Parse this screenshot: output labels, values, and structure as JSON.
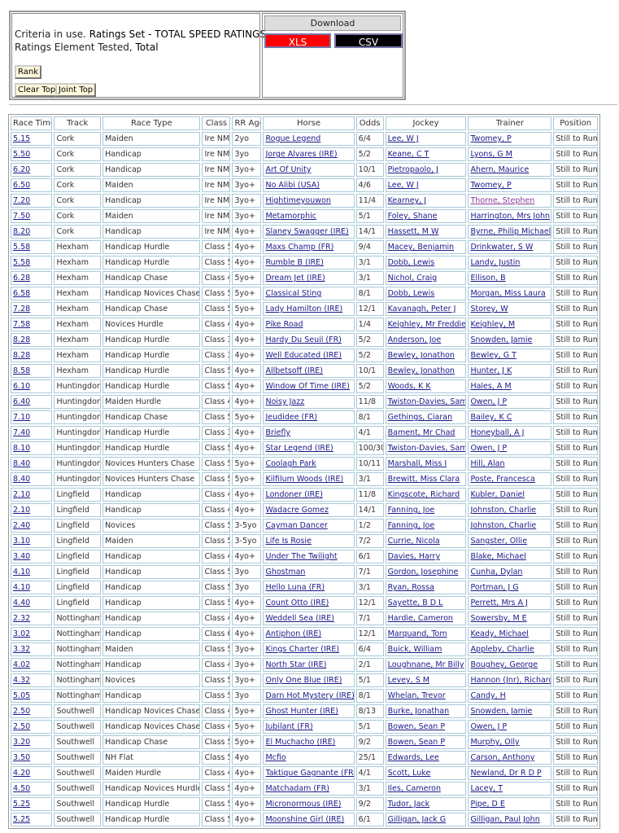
{
  "criteria": {
    "prefix": "Criteria in use. ",
    "set_label": "Ratings Set - TOTAL SPEED RATINGS",
    "element_prefix": "Ratings Element Tested, ",
    "element_value": "Total"
  },
  "buttons": {
    "rank": "Rank",
    "clear_top": "Clear Top",
    "joint_top": "Joint Top"
  },
  "download": {
    "title": "Download",
    "xls": "XLS",
    "csv": "CSV",
    "colors": {
      "xls": "#ff0000",
      "csv": "#000000"
    }
  },
  "columns": [
    "Race Time",
    "Track",
    "Race Type",
    "Class",
    "RR Age",
    "Horse",
    "Odds",
    "Jockey",
    "Trainer",
    "Position"
  ],
  "rows": [
    [
      "5.15",
      "Cork",
      "Maiden",
      "Ire NM",
      "2yo",
      "Rogue Legend",
      "6/4",
      "Lee, W J",
      "Twomey, P",
      "Still to Run"
    ],
    [
      "5.50",
      "Cork",
      "Handicap",
      "Ire NM",
      "3yo",
      "Jorge Alvares (IRE)",
      "5/2",
      "Keane, C T",
      "Lyons, G M",
      "Still to Run"
    ],
    [
      "6.20",
      "Cork",
      "Handicap",
      "Ire NM",
      "3yo+",
      "Art Of Unity",
      "10/1",
      "Pietropaolo, J",
      "Ahern, Maurice",
      "Still to Run"
    ],
    [
      "6.50",
      "Cork",
      "Maiden",
      "Ire NM",
      "3yo+",
      "No Alibi (USA)",
      "4/6",
      "Lee, W J",
      "Twomey, P",
      "Still to Run"
    ],
    [
      "7.20",
      "Cork",
      "Handicap",
      "Ire NM",
      "3yo+",
      "Hightimeyouwon",
      "11/4",
      "Kearney, J",
      "Thorne, Stephen",
      "Still to Run"
    ],
    [
      "7.50",
      "Cork",
      "Maiden",
      "Ire NM",
      "3yo+",
      "Metamorphic",
      "5/1",
      "Foley, Shane",
      "Harrington, Mrs John",
      "Still to Run"
    ],
    [
      "8.20",
      "Cork",
      "Handicap",
      "Ire NM",
      "4yo+",
      "Slaney Swagger (IRE)",
      "14/1",
      "Hassett, M W",
      "Byrne, Philip Michael",
      "Still to Run"
    ],
    [
      "5.58",
      "Hexham",
      "Handicap Hurdle",
      "Class 5",
      "4yo+",
      "Maxs Champ (FR)",
      "9/4",
      "Macey, Benjamin",
      "Drinkwater, S W",
      "Still to Run"
    ],
    [
      "5.58",
      "Hexham",
      "Handicap Hurdle",
      "Class 5",
      "4yo+",
      "Rumble B (IRE)",
      "3/1",
      "Dobb, Lewis",
      "Landy, Justin",
      "Still to Run"
    ],
    [
      "6.28",
      "Hexham",
      "Handicap Chase",
      "Class 4",
      "5yo+",
      "Dream Jet (IRE)",
      "3/1",
      "Nichol, Craig",
      "Ellison, B",
      "Still to Run"
    ],
    [
      "6.58",
      "Hexham",
      "Handicap Novices Chase",
      "Class 5",
      "5yo+",
      "Classical Sting",
      "8/1",
      "Dobb, Lewis",
      "Morgan, Miss Laura",
      "Still to Run"
    ],
    [
      "7.28",
      "Hexham",
      "Handicap Chase",
      "Class 5",
      "5yo+",
      "Lady Hamilton (IRE)",
      "12/1",
      "Kavanagh, Peter J",
      "Storey, W",
      "Still to Run"
    ],
    [
      "7.58",
      "Hexham",
      "Novices Hurdle",
      "Class 4",
      "4yo+",
      "Pike Road",
      "1/4",
      "Keighley, Mr Freddie",
      "Keighley, M",
      "Still to Run"
    ],
    [
      "8.28",
      "Hexham",
      "Handicap Hurdle",
      "Class 3",
      "4yo+",
      "Hardy Du Seuil (FR)",
      "5/2",
      "Anderson, Joe",
      "Snowden, Jamie",
      "Still to Run"
    ],
    [
      "8.28",
      "Hexham",
      "Handicap Hurdle",
      "Class 3",
      "4yo+",
      "Well Educated (IRE)",
      "5/2",
      "Bewley, Jonathon",
      "Bewley, G T",
      "Still to Run"
    ],
    [
      "8.58",
      "Hexham",
      "Handicap Hurdle",
      "Class 5",
      "4yo+",
      "Allbetsoff (IRE)",
      "10/1",
      "Bewley, Jonathon",
      "Hunter, J K",
      "Still to Run"
    ],
    [
      "6.10",
      "Huntingdon",
      "Handicap Hurdle",
      "Class 5",
      "4yo+",
      "Window Of Time (IRE)",
      "5/2",
      "Woods, K K",
      "Hales, A M",
      "Still to Run"
    ],
    [
      "6.40",
      "Huntingdon",
      "Maiden Hurdle",
      "Class 4",
      "4yo+",
      "Noisy Jazz",
      "11/8",
      "Twiston-Davies, Sam",
      "Owen, J P",
      "Still to Run"
    ],
    [
      "7.10",
      "Huntingdon",
      "Handicap Chase",
      "Class 5",
      "5yo+",
      "Jeudidee (FR)",
      "8/1",
      "Gethings, Ciaran",
      "Bailey, K C",
      "Still to Run"
    ],
    [
      "7.40",
      "Huntingdon",
      "Handicap Hurdle",
      "Class 3",
      "4yo+",
      "Briefly",
      "4/1",
      "Bament, Mr Chad",
      "Honeyball, A J",
      "Still to Run"
    ],
    [
      "8.10",
      "Huntingdon",
      "Handicap Hurdle",
      "Class 5",
      "4yo+",
      "Star Legend (IRE)",
      "100/30",
      "Twiston-Davies, Sam",
      "Owen, J P",
      "Still to Run"
    ],
    [
      "8.40",
      "Huntingdon",
      "Novices Hunters Chase",
      "Class 5",
      "5yo+",
      "Coolagh Park",
      "10/11",
      "Marshall, Miss I",
      "Hill, Alan",
      "Still to Run"
    ],
    [
      "8.40",
      "Huntingdon",
      "Novices Hunters Chase",
      "Class 5",
      "5yo+",
      "Kilfilum Woods (IRE)",
      "3/1",
      "Brewitt, Miss Clara",
      "Poste, Francesca",
      "Still to Run"
    ],
    [
      "2.10",
      "Lingfield",
      "Handicap",
      "Class 4",
      "4yo+",
      "Londoner (IRE)",
      "11/8",
      "Kingscote, Richard",
      "Kubler, Daniel",
      "Still to Run"
    ],
    [
      "2.10",
      "Lingfield",
      "Handicap",
      "Class 4",
      "4yo+",
      "Wadacre Gomez",
      "14/1",
      "Fanning, Joe",
      "Johnston, Charlie",
      "Still to Run"
    ],
    [
      "2.40",
      "Lingfield",
      "Novices",
      "Class 5",
      "3-5yo",
      "Cayman Dancer",
      "1/2",
      "Fanning, Joe",
      "Johnston, Charlie",
      "Still to Run"
    ],
    [
      "3.10",
      "Lingfield",
      "Maiden",
      "Class 5",
      "3-5yo",
      "Life Is Rosie",
      "7/2",
      "Currie, Nicola",
      "Sangster, Ollie",
      "Still to Run"
    ],
    [
      "3.40",
      "Lingfield",
      "Handicap",
      "Class 4",
      "4yo+",
      "Under The Twilight",
      "6/1",
      "Davies, Harry",
      "Blake, Michael",
      "Still to Run"
    ],
    [
      "4.10",
      "Lingfield",
      "Handicap",
      "Class 5",
      "3yo",
      "Ghostman",
      "7/1",
      "Gordon, Josephine",
      "Cunha, Dylan",
      "Still to Run"
    ],
    [
      "4.10",
      "Lingfield",
      "Handicap",
      "Class 5",
      "3yo",
      "Hello Luna (FR)",
      "3/1",
      "Ryan, Rossa",
      "Portman, J G",
      "Still to Run"
    ],
    [
      "4.40",
      "Lingfield",
      "Handicap",
      "Class 5",
      "4yo+",
      "Count Otto (IRE)",
      "12/1",
      "Sayette, B D L",
      "Perrett, Mrs A J",
      "Still to Run"
    ],
    [
      "2.32",
      "Nottingham",
      "Handicap",
      "Class 4",
      "4yo+",
      "Weddell Sea (IRE)",
      "7/1",
      "Hardie, Cameron",
      "Sowersby, M E",
      "Still to Run"
    ],
    [
      "3.02",
      "Nottingham",
      "Handicap",
      "Class 6",
      "4yo+",
      "Antiphon (IRE)",
      "12/1",
      "Marquand, Tom",
      "Keady, Michael",
      "Still to Run"
    ],
    [
      "3.32",
      "Nottingham",
      "Maiden",
      "Class 5",
      "3yo+",
      "Kings Charter (IRE)",
      "6/4",
      "Buick, William",
      "Appleby, Charlie",
      "Still to Run"
    ],
    [
      "4.02",
      "Nottingham",
      "Handicap",
      "Class 4",
      "3yo+",
      "North Star (IRE)",
      "2/1",
      "Loughnane, Mr Billy",
      "Boughey, George",
      "Still to Run"
    ],
    [
      "4.32",
      "Nottingham",
      "Novices",
      "Class 5",
      "3yo+",
      "Only One Blue (IRE)",
      "5/1",
      "Levey, S M",
      "Hannon (Jnr), Richard",
      "Still to Run"
    ],
    [
      "5.05",
      "Nottingham",
      "Handicap",
      "Class 5",
      "3yo",
      "Darn Hot Mystery (IRE)",
      "8/1",
      "Whelan, Trevor",
      "Candy, H",
      "Still to Run"
    ],
    [
      "2.50",
      "Southwell",
      "Handicap Novices Chase",
      "Class 4",
      "5yo+",
      "Ghost Hunter (IRE)",
      "8/13",
      "Burke, Jonathan",
      "Snowden, Jamie",
      "Still to Run"
    ],
    [
      "2.50",
      "Southwell",
      "Handicap Novices Chase",
      "Class 4",
      "5yo+",
      "Jubilant (FR)",
      "5/1",
      "Bowen, Sean P",
      "Owen, J P",
      "Still to Run"
    ],
    [
      "3.20",
      "Southwell",
      "Handicap Chase",
      "Class 5",
      "5yo+",
      "El Muchacho (IRE)",
      "9/2",
      "Bowen, Sean P",
      "Murphy, Olly",
      "Still to Run"
    ],
    [
      "3.50",
      "Southwell",
      "NH Flat",
      "Class 5",
      "4yo",
      "Mcfio",
      "25/1",
      "Edwards, Lee",
      "Carson, Anthony",
      "Still to Run"
    ],
    [
      "4.20",
      "Southwell",
      "Maiden Hurdle",
      "Class 4",
      "4yo+",
      "Taktique Gagnante (FR)",
      "4/1",
      "Scott, Luke",
      "Newland, Dr R D P",
      "Still to Run"
    ],
    [
      "4.50",
      "Southwell",
      "Handicap Novices Hurdle",
      "Class 5",
      "4yo+",
      "Matchadam (FR)",
      "3/1",
      "Iles, Cameron",
      "Lacey, T",
      "Still to Run"
    ],
    [
      "5.25",
      "Southwell",
      "Handicap Hurdle",
      "Class 5",
      "4yo+",
      "Micronormous (IRE)",
      "9/2",
      "Tudor, Jack",
      "Pipe, D E",
      "Still to Run"
    ],
    [
      "5.25",
      "Southwell",
      "Handicap Hurdle",
      "Class 5",
      "4yo+",
      "Moonshine Girl (IRE)",
      "6/1",
      "Gilligan, Jack G",
      "Gilligan, Paul John",
      "Still to Run"
    ]
  ]
}
